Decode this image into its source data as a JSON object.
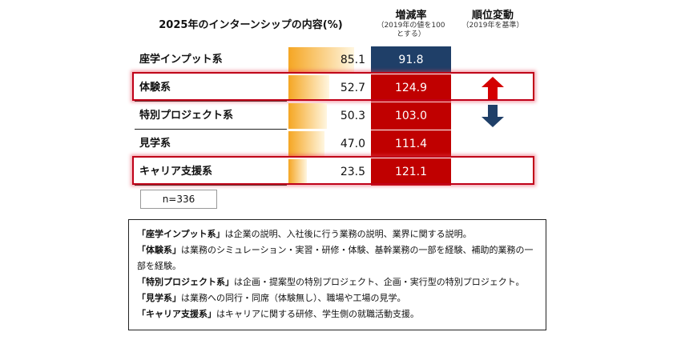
{
  "header": {
    "title": "2025年のインターンシップの内容(%)",
    "rate_title": "増減率",
    "rate_sub1": "（2019年の値を100",
    "rate_sub2": "とする）",
    "rank_title": "順位変動",
    "rank_sub": "（2019年を基準）"
  },
  "chart_data": {
    "type": "table",
    "rows": [
      {
        "label": "座学インプット系",
        "value": 85.1,
        "value_text": "85.1",
        "rate": 91.8,
        "rate_text": "91.8",
        "rate_color": "#1f3f68",
        "rank_change": "none",
        "highlight": false
      },
      {
        "label": "体験系",
        "value": 52.7,
        "value_text": "52.7",
        "rate": 124.9,
        "rate_text": "124.9",
        "rate_color": "#c00000",
        "rank_change": "up",
        "highlight": true
      },
      {
        "label": "特別プロジェクト系",
        "value": 50.3,
        "value_text": "50.3",
        "rate": 103.0,
        "rate_text": "103.0",
        "rate_color": "#c00000",
        "rank_change": "down",
        "highlight": false
      },
      {
        "label": "見学系",
        "value": 47.0,
        "value_text": "47.0",
        "rate": 111.4,
        "rate_text": "111.4",
        "rate_color": "#c00000",
        "rank_change": "none",
        "highlight": false
      },
      {
        "label": "キャリア支援系",
        "value": 23.5,
        "value_text": "23.5",
        "rate": 121.1,
        "rate_text": "121.1",
        "rate_color": "#c00000",
        "rank_change": "none",
        "highlight": true
      }
    ],
    "bar_max": 100,
    "bar_gradient": [
      "#f5a623",
      "#fff6e0"
    ]
  },
  "sample": "n=336",
  "notes": [
    {
      "term": "「座学インプット系」",
      "text": "は企業の説明、入社後に行う業務の説明、業界に関する説明。"
    },
    {
      "term": "「体験系」",
      "text": "は業務のシミュレーション・実習・研修・体験、基幹業務の一部を経験、補助的業務の一部を経験。"
    },
    {
      "term": "「特別プロジェクト系」",
      "text": "は企画・提案型の特別プロジェクト、企画・実行型の特別プロジェクト。"
    },
    {
      "term": "「見学系」",
      "text": "は業務への同行・同席（体験無し）、職場や工場の見学。"
    },
    {
      "term": "「キャリア支援系」",
      "text": "はキャリアに関する研修、学生側の就職活動支援。"
    }
  ]
}
